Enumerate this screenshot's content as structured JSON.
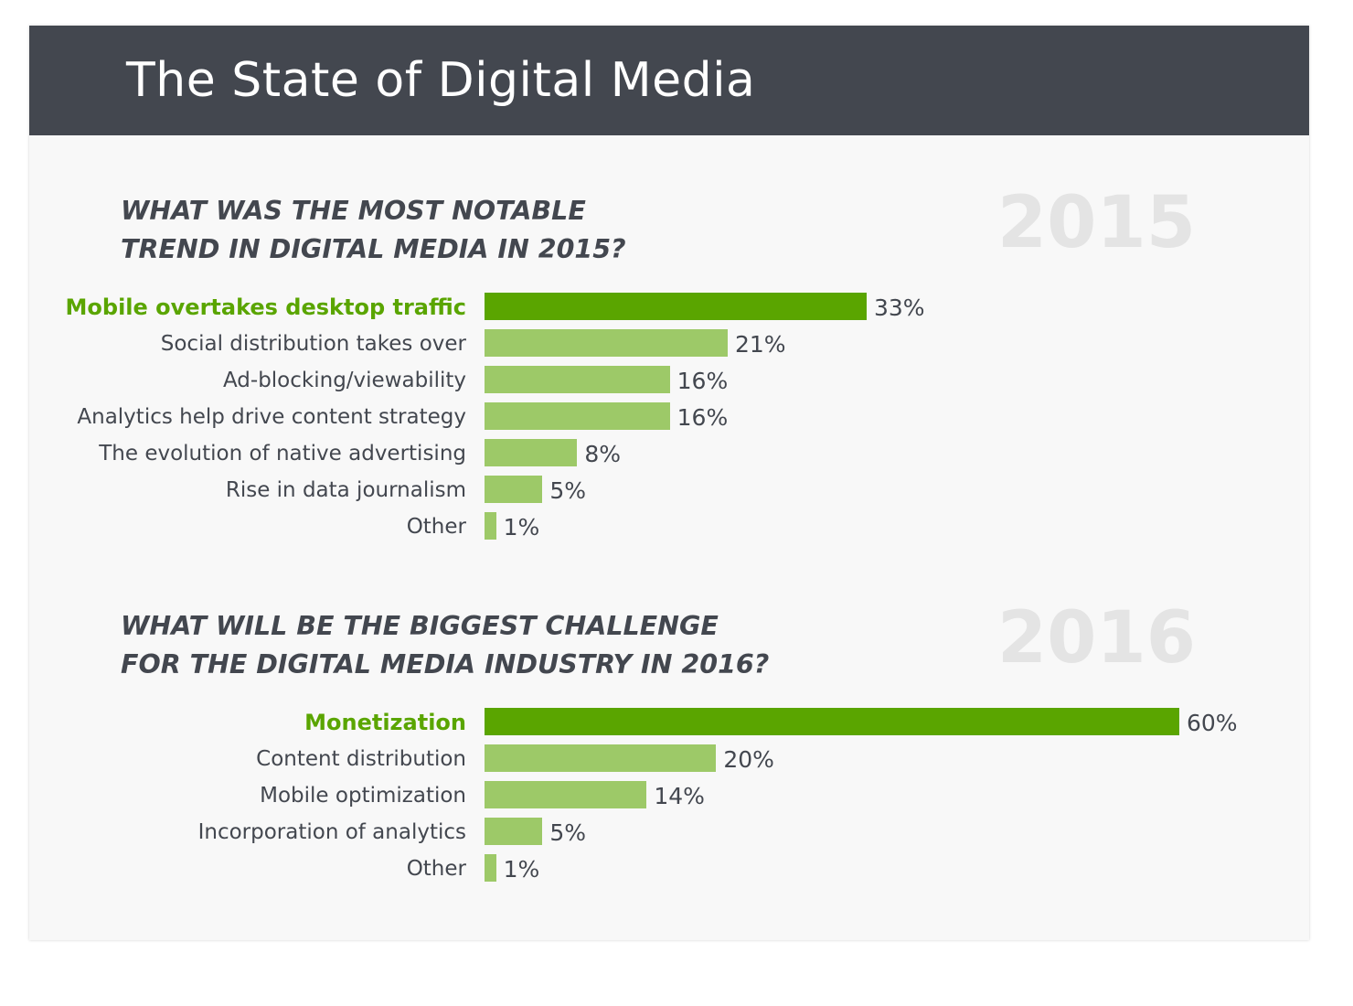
{
  "header": {
    "title": "The State of Digital Media"
  },
  "colors": {
    "header_bg": "#43474f",
    "highlight_bar": "#5aa500",
    "normal_bar": "#9dc968",
    "year_watermark": "#e4e4e4"
  },
  "chart_data": [
    {
      "type": "bar",
      "orientation": "horizontal",
      "title_lines": [
        "WHAT WAS THE MOST NOTABLE",
        "TREND IN DIGITAL MEDIA IN 2015?"
      ],
      "year": "2015",
      "categories": [
        "Mobile overtakes desktop traffic",
        "Social distribution takes over",
        "Ad-blocking/viewability",
        "Analytics help drive content strategy",
        "The evolution of native advertising",
        "Rise in data journalism",
        "Other"
      ],
      "values": [
        33,
        21,
        16,
        16,
        8,
        5,
        1
      ],
      "value_labels": [
        "33%",
        "21%",
        "16%",
        "16%",
        "8%",
        "5%",
        "1%"
      ],
      "unit": "%",
      "highlight_index": 0,
      "xlim": [
        0,
        60
      ],
      "grid": false,
      "legend": false
    },
    {
      "type": "bar",
      "orientation": "horizontal",
      "title_lines": [
        "WHAT WILL BE THE BIGGEST CHALLENGE",
        "FOR THE DIGITAL MEDIA INDUSTRY IN 2016?"
      ],
      "year": "2016",
      "categories": [
        "Monetization",
        "Content distribution",
        "Mobile optimization",
        "Incorporation of analytics",
        "Other"
      ],
      "values": [
        60,
        20,
        14,
        5,
        1
      ],
      "value_labels": [
        "60%",
        "20%",
        "14%",
        "5%",
        "1%"
      ],
      "unit": "%",
      "highlight_index": 0,
      "xlim": [
        0,
        60
      ],
      "grid": false,
      "legend": false
    }
  ]
}
